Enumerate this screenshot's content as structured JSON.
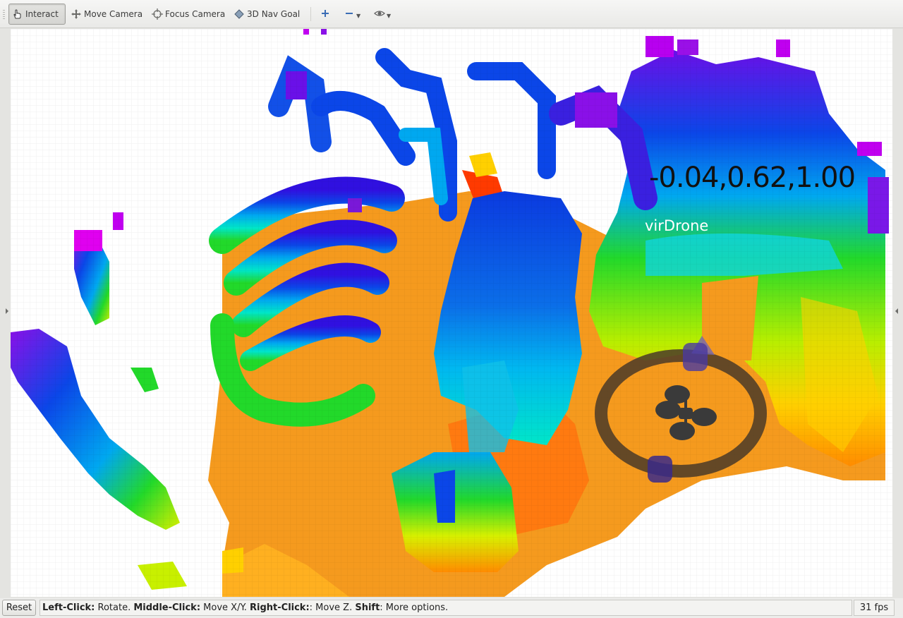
{
  "toolbar": {
    "tools": [
      {
        "label": "Interact",
        "icon": "hand-pointer-icon",
        "active": true
      },
      {
        "label": "Move Camera",
        "icon": "move-camera-icon",
        "active": false
      },
      {
        "label": "Focus Camera",
        "icon": "focus-crosshair-icon",
        "active": false
      },
      {
        "label": "3D Nav Goal",
        "icon": "diamond-icon",
        "active": false
      }
    ],
    "add_icon": "plus-icon",
    "remove_icon": "minus-icon",
    "view_icon": "eye-icon"
  },
  "viewport": {
    "coord_text": "-0.04,0.62,1.00",
    "robot_label": "virDrone"
  },
  "status": {
    "reset_label": "Reset",
    "help": {
      "k1": "Left-Click:",
      "v1": " Rotate. ",
      "k2": "Middle-Click:",
      "v2": " Move X/Y. ",
      "k3": "Right-Click:",
      "v3": ": Move Z. ",
      "k4": "Shift",
      "v4": ": More options."
    },
    "fps": "31 fps"
  },
  "colors": {
    "background": "#ffffff",
    "ground": "#f59a1e",
    "spectrum": [
      "#ff2a00",
      "#ff8c00",
      "#ffd000",
      "#b8ee00",
      "#22d92a",
      "#00e6c8",
      "#00a8f0",
      "#0b46e8",
      "#4a18d8",
      "#c000f0"
    ]
  }
}
